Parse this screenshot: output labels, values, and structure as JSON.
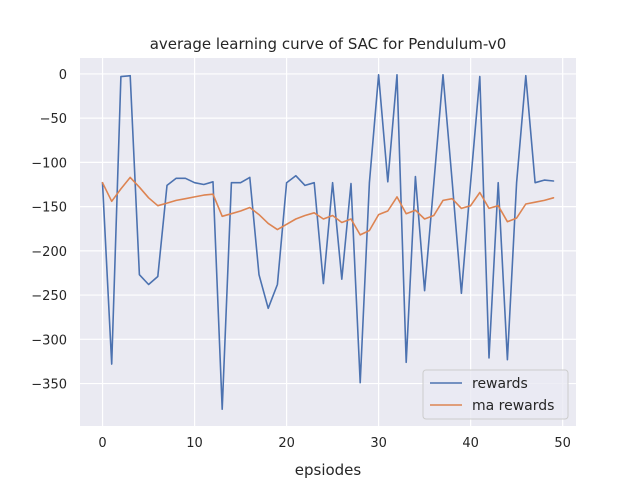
{
  "chart_data": {
    "type": "line",
    "title": "average learning curve of SAC for Pendulum-v0",
    "xlabel": "epsiodes",
    "ylabel": "",
    "xlim": [
      -2.45,
      51.45
    ],
    "ylim": [
      -398,
      18
    ],
    "xticks": [
      0,
      10,
      20,
      30,
      40,
      50
    ],
    "yticks": [
      0,
      -50,
      -100,
      -150,
      -200,
      -250,
      -300,
      -350
    ],
    "ytick_labels": [
      "0",
      "−50",
      "−100",
      "−150",
      "−200",
      "−250",
      "−300",
      "−350"
    ],
    "grid": true,
    "legend_position": "bottom-right",
    "x": [
      0,
      1,
      2,
      3,
      4,
      5,
      6,
      7,
      8,
      9,
      10,
      11,
      12,
      13,
      14,
      15,
      16,
      17,
      18,
      19,
      20,
      21,
      22,
      23,
      24,
      25,
      26,
      27,
      28,
      29,
      30,
      31,
      32,
      33,
      34,
      35,
      36,
      37,
      38,
      39,
      40,
      41,
      42,
      43,
      44,
      45,
      46,
      47,
      48,
      49
    ],
    "series": [
      {
        "name": "rewards",
        "color": "#4c72b0",
        "values": [
          -123,
          -328,
          -3,
          -2,
          -227,
          -238,
          -229,
          -126,
          -118,
          -118,
          -123,
          -125,
          -122,
          -379,
          -123,
          -123,
          -117,
          -227,
          -265,
          -238,
          -123,
          -115,
          -126,
          -123,
          -237,
          -123,
          -232,
          -124,
          -349,
          -123,
          -1,
          -122,
          -1,
          -326,
          -116,
          -245,
          -124,
          -1,
          -122,
          -248,
          -123,
          -3,
          -321,
          -123,
          -323,
          -123,
          -2,
          -123,
          -120,
          -121
        ]
      },
      {
        "name": "ma rewards",
        "color": "#dd8452",
        "values": [
          -123,
          -144,
          -130,
          -117,
          -128,
          -140,
          -149,
          -146,
          -143,
          -141,
          -139,
          -137,
          -136,
          -161,
          -158,
          -155,
          -151,
          -159,
          -169,
          -176,
          -170,
          -164,
          -160,
          -157,
          -164,
          -160,
          -168,
          -164,
          -182,
          -177,
          -159,
          -155,
          -139,
          -158,
          -154,
          -164,
          -160,
          -143,
          -141,
          -152,
          -149,
          -134,
          -152,
          -149,
          -167,
          -163,
          -147,
          -145,
          -143,
          -140
        ]
      }
    ]
  }
}
